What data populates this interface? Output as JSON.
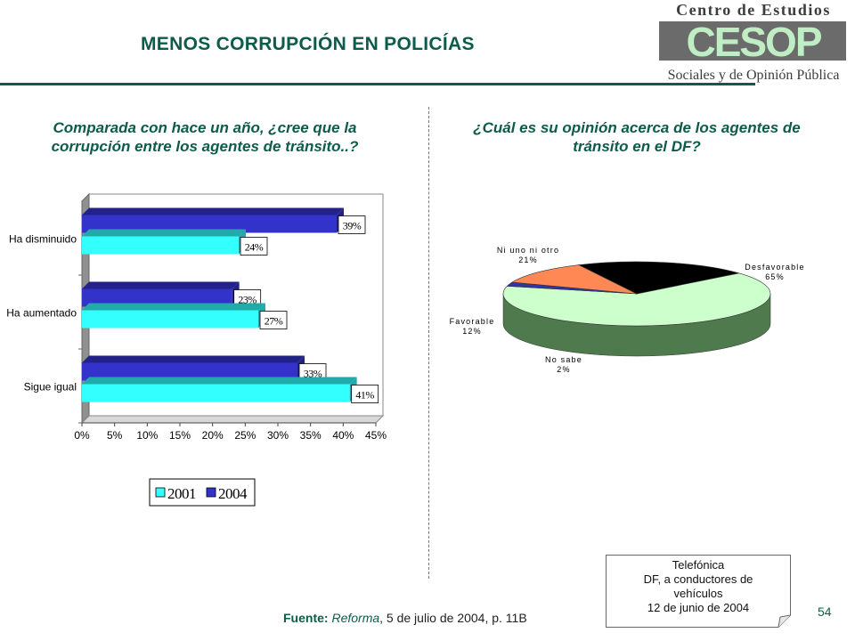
{
  "header": {
    "title": "MENOS CORRUPCIÓN EN POLICÍAS",
    "logo": {
      "top_text": "Centro de Estudios",
      "mark": "CESOP",
      "bottom_text": "Sociales y de Opinión Pública"
    }
  },
  "left_question": "Comparada con hace un año, ¿cree que la corrupción entre los agentes de tránsito..?",
  "right_question": "¿Cuál  es su opinión acerca de los agentes de tránsito  en el DF?",
  "chart_data": [
    {
      "type": "bar",
      "orientation": "horizontal",
      "categories": [
        "Ha disminuido",
        "Ha aumentado",
        "Sigue igual"
      ],
      "series": [
        {
          "name": "2001",
          "values": [
            24,
            27,
            41
          ],
          "color": "#33ffff"
        },
        {
          "name": "2004",
          "values": [
            39,
            23,
            33
          ],
          "color": "#3333cc"
        }
      ],
      "data_labels": {
        "2001": [
          "24%",
          "27%",
          "41%"
        ],
        "2004": [
          "39%",
          "23%",
          "33%"
        ]
      },
      "xlim": [
        0,
        45
      ],
      "xticks": [
        "0%",
        "5%",
        "10%",
        "15%",
        "20%",
        "25%",
        "30%",
        "35%",
        "40%",
        "45%"
      ],
      "legend": "bottom",
      "three_d": true
    },
    {
      "type": "pie",
      "three_d": true,
      "slices": [
        {
          "label": "Desfavorable",
          "value": 65,
          "value_label": "65%",
          "color": "#ccffcc"
        },
        {
          "label": "No sabe",
          "value": 2,
          "value_label": "2%",
          "color": "#3333aa"
        },
        {
          "label": "Favorable",
          "value": 12,
          "value_label": "12%",
          "color": "#ff8855"
        },
        {
          "label": "Ni uno ni otro",
          "value": 21,
          "value_label": "21%",
          "color": "#000000"
        }
      ]
    }
  ],
  "note_box": {
    "lines": [
      "Telefónica",
      "DF, a conductores de",
      "vehículos",
      "12 de junio de 2004"
    ]
  },
  "footer": {
    "source_label": "Fuente:",
    "source_publication": "Reforma",
    "source_rest": ", 5 de julio de 2004, p. 11B",
    "page_number": "54"
  }
}
